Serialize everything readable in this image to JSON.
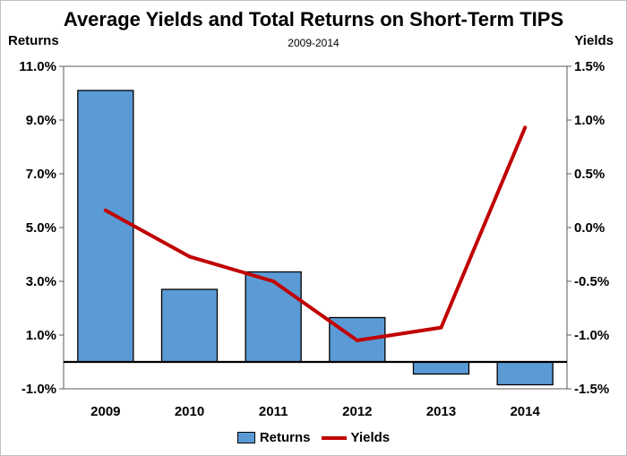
{
  "chart_data": {
    "type": "bar",
    "title": "Average Yields and Total Returns on Short-Term TIPS",
    "subtitle": "2009-2014",
    "left_axis_label": "Returns",
    "right_axis_label": "Yields",
    "categories": [
      "2009",
      "2010",
      "2011",
      "2012",
      "2013",
      "2014"
    ],
    "left_ticks": [
      "11.0%",
      "9.0%",
      "7.0%",
      "5.0%",
      "3.0%",
      "1.0%",
      "-1.0%"
    ],
    "right_ticks": [
      "1.5%",
      "1.0%",
      "0.5%",
      "0.0%",
      "-0.5%",
      "-1.0%",
      "-1.5%"
    ],
    "ylim_left": [
      -1.0,
      11.0
    ],
    "ylim_right": [
      -1.5,
      1.5
    ],
    "series": [
      {
        "name": "Returns",
        "type": "bar",
        "axis": "left",
        "color": "#5b9bd5",
        "values": [
          10.1,
          2.7,
          3.35,
          1.65,
          -0.45,
          -0.85
        ]
      },
      {
        "name": "Yields",
        "type": "line",
        "axis": "right",
        "color": "#c00000",
        "values": [
          0.16,
          -0.27,
          -0.5,
          -1.05,
          -0.93,
          0.93
        ]
      }
    ],
    "grid": false,
    "legend_position": "bottom"
  }
}
